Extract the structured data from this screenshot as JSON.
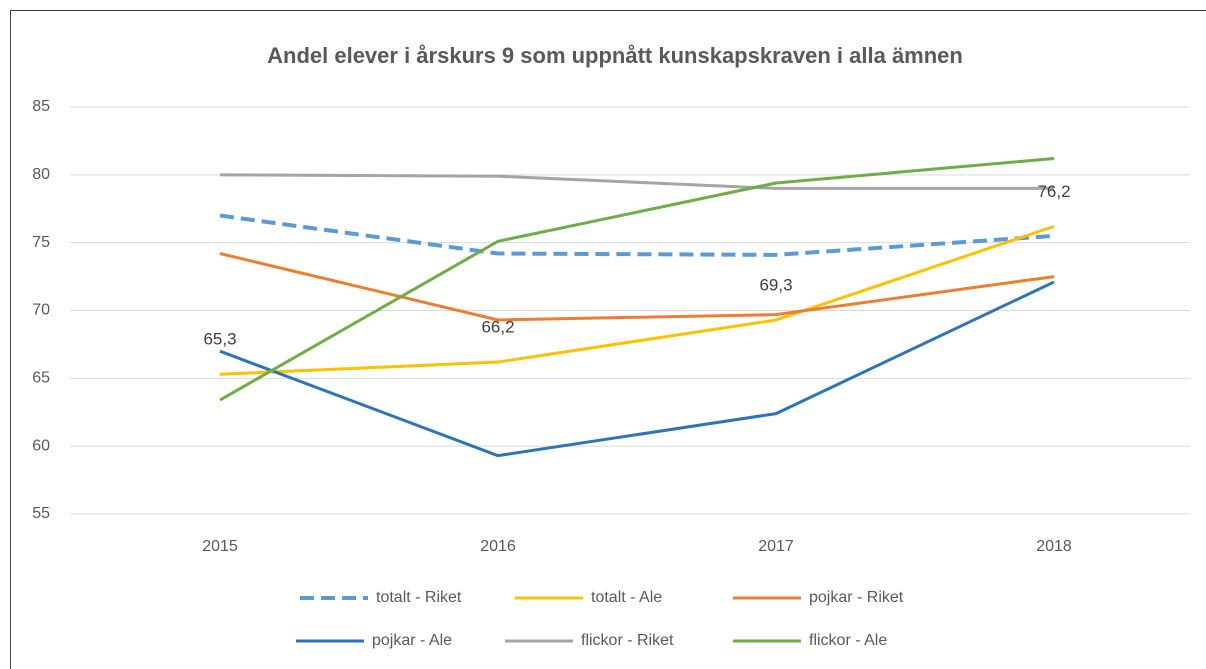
{
  "chart_data": {
    "type": "line",
    "title": "Andel elever i årskurs 9 som uppnått kunskapskraven i alla ämnen",
    "categories": [
      "2015",
      "2016",
      "2017",
      "2018"
    ],
    "ylim": [
      55,
      85
    ],
    "yticks": [
      55,
      60,
      65,
      70,
      75,
      80,
      85
    ],
    "grid": true,
    "legend": "bottom",
    "series": [
      {
        "name": "totalt - Riket",
        "color": "#5b9bd5",
        "dashed": true,
        "values": [
          77.0,
          74.2,
          74.1,
          75.5
        ]
      },
      {
        "name": "totalt - Ale",
        "color": "#ffc000",
        "values": [
          65.3,
          66.2,
          69.3,
          76.2
        ],
        "value_labels": [
          "65,3",
          "66,2",
          "69,3",
          "76,2"
        ]
      },
      {
        "name": "pojkar - Riket",
        "color": "#ed7d31",
        "values": [
          74.2,
          69.3,
          69.7,
          72.5
        ]
      },
      {
        "name": "pojkar - Ale",
        "color": "#2e75b6",
        "values": [
          67.0,
          59.3,
          62.4,
          72.1
        ]
      },
      {
        "name": "flickor - Riket",
        "color": "#a5a5a5",
        "values": [
          80.0,
          79.9,
          79.0,
          79.0
        ]
      },
      {
        "name": "flickor - Ale",
        "color": "#70ad47",
        "values": [
          63.4,
          75.1,
          79.4,
          81.2
        ]
      }
    ]
  }
}
